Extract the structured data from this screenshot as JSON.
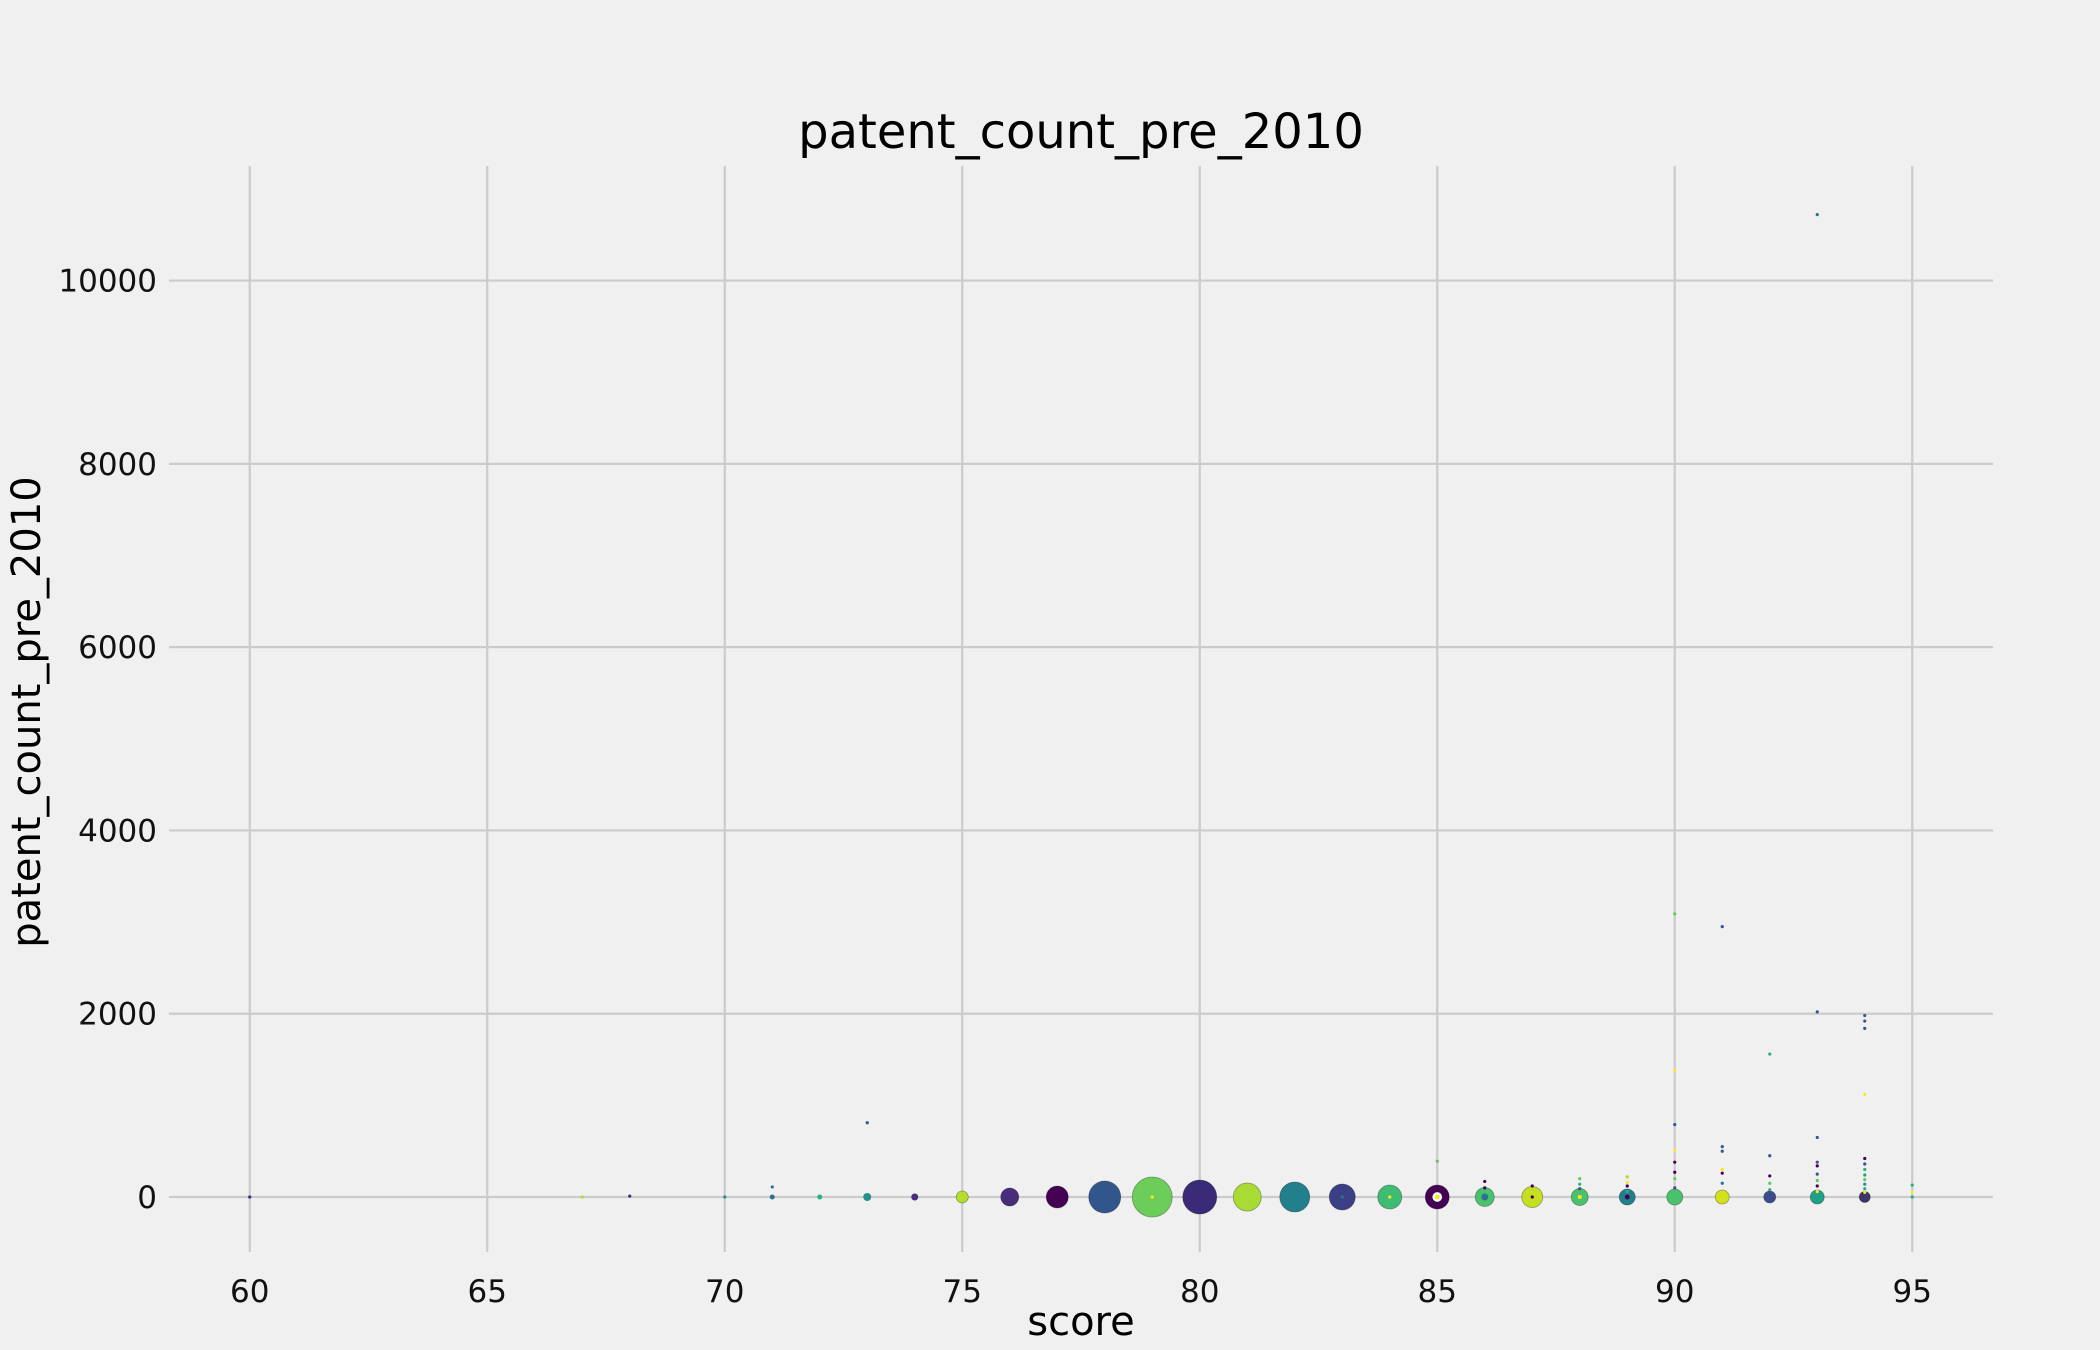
{
  "chart_data": {
    "type": "scatter",
    "title": "patent_count_pre_2010",
    "xlabel": "score",
    "ylabel": "patent_count_pre_2010",
    "xlim": [
      58.3,
      96.7
    ],
    "ylim": [
      -600,
      11250
    ],
    "xticks": [
      60,
      65,
      70,
      75,
      80,
      85,
      90,
      95
    ],
    "yticks": [
      0,
      2000,
      4000,
      6000,
      8000,
      10000
    ],
    "grid": true,
    "colormap": [
      "#440154",
      "#472d7b",
      "#3b528b",
      "#2c728e",
      "#21918c",
      "#28ae80",
      "#5ec962",
      "#addc30",
      "#fde725"
    ],
    "points": [
      {
        "x": 60,
        "y": 0,
        "size": 1,
        "color": "#3b2f7a"
      },
      {
        "x": 67,
        "y": 0,
        "size": 2,
        "color": "#a8db34"
      },
      {
        "x": 68,
        "y": 10,
        "size": 1,
        "color": "#472d7b"
      },
      {
        "x": 70,
        "y": 0,
        "size": 1,
        "color": "#21918c"
      },
      {
        "x": 71,
        "y": 0,
        "size": 5,
        "color": "#2c728e"
      },
      {
        "x": 71,
        "y": 110,
        "size": 1,
        "color": "#2c728e"
      },
      {
        "x": 72,
        "y": 0,
        "size": 5,
        "color": "#28ae80"
      },
      {
        "x": 73,
        "y": 0,
        "size": 8,
        "color": "#21918c"
      },
      {
        "x": 73,
        "y": 810,
        "size": 1,
        "color": "#3b528b"
      },
      {
        "x": 74,
        "y": 0,
        "size": 7,
        "color": "#472d7b"
      },
      {
        "x": 75,
        "y": 0,
        "size": 12,
        "color": "#b5de2b"
      },
      {
        "x": 76,
        "y": 0,
        "size": 18,
        "color": "#472d7b"
      },
      {
        "x": 77,
        "y": 0,
        "size": 22,
        "color": "#440154"
      },
      {
        "x": 78,
        "y": 0,
        "size": 32,
        "color": "#31568c"
      },
      {
        "x": 79,
        "y": 0,
        "size": 40,
        "color": "#6ccd5a"
      },
      {
        "x": 79,
        "y": 0,
        "size": 2,
        "color": "#fde725"
      },
      {
        "x": 80,
        "y": 0,
        "size": 34,
        "color": "#3b2a77"
      },
      {
        "x": 81,
        "y": 0,
        "size": 28,
        "color": "#a8db34"
      },
      {
        "x": 82,
        "y": 0,
        "size": 30,
        "color": "#21808c"
      },
      {
        "x": 83,
        "y": 0,
        "size": 26,
        "color": "#3b3f85"
      },
      {
        "x": 83,
        "y": 0,
        "size": 3,
        "color": "#2c728e"
      },
      {
        "x": 84,
        "y": 0,
        "size": 24,
        "color": "#3fbc73"
      },
      {
        "x": 84,
        "y": 0,
        "size": 3,
        "color": "#fde725"
      },
      {
        "x": 85,
        "y": 0,
        "size": 24,
        "color": "#440154"
      },
      {
        "x": 85,
        "y": 0,
        "size": 10,
        "color": "#ffffff"
      },
      {
        "x": 85,
        "y": 0,
        "size": 5,
        "color": "#fde725"
      },
      {
        "x": 85,
        "y": 390,
        "size": 1,
        "color": "#5ec962"
      },
      {
        "x": 86,
        "y": 0,
        "size": 19,
        "color": "#4ac16d"
      },
      {
        "x": 86,
        "y": 0,
        "size": 7,
        "color": "#2c728e"
      },
      {
        "x": 86,
        "y": 100,
        "size": 2,
        "color": "#440154"
      },
      {
        "x": 86,
        "y": 170,
        "size": 2,
        "color": "#440154"
      },
      {
        "x": 87,
        "y": 0,
        "size": 21,
        "color": "#c5e021"
      },
      {
        "x": 87,
        "y": 0,
        "size": 3,
        "color": "#440154"
      },
      {
        "x": 87,
        "y": 120,
        "size": 1,
        "color": "#440154"
      },
      {
        "x": 88,
        "y": 0,
        "size": 17,
        "color": "#4ac16d"
      },
      {
        "x": 88,
        "y": 0,
        "size": 4,
        "color": "#fde725"
      },
      {
        "x": 88,
        "y": 90,
        "size": 2,
        "color": "#31568c"
      },
      {
        "x": 88,
        "y": 140,
        "size": 2,
        "color": "#28ae80"
      },
      {
        "x": 88,
        "y": 200,
        "size": 2,
        "color": "#5ec962"
      },
      {
        "x": 89,
        "y": 0,
        "size": 16,
        "color": "#21808c"
      },
      {
        "x": 89,
        "y": 0,
        "size": 5,
        "color": "#440154"
      },
      {
        "x": 89,
        "y": 60,
        "size": 2,
        "color": "#28ae80"
      },
      {
        "x": 89,
        "y": 120,
        "size": 2,
        "color": "#440154"
      },
      {
        "x": 89,
        "y": 160,
        "size": 2,
        "color": "#fde725"
      },
      {
        "x": 89,
        "y": 220,
        "size": 2,
        "color": "#addc30"
      },
      {
        "x": 90,
        "y": 0,
        "size": 16,
        "color": "#4ac16d"
      },
      {
        "x": 90,
        "y": 100,
        "size": 2,
        "color": "#3b528b"
      },
      {
        "x": 90,
        "y": 200,
        "size": 2,
        "color": "#5ec962"
      },
      {
        "x": 90,
        "y": 270,
        "size": 2,
        "color": "#440154"
      },
      {
        "x": 90,
        "y": 380,
        "size": 2,
        "color": "#440154"
      },
      {
        "x": 90,
        "y": 510,
        "size": 2,
        "color": "#fde725"
      },
      {
        "x": 90,
        "y": 790,
        "size": 2,
        "color": "#3b528b"
      },
      {
        "x": 90,
        "y": 1380,
        "size": 1,
        "color": "#fde725"
      },
      {
        "x": 90,
        "y": 3090,
        "size": 2,
        "color": "#5ec962"
      },
      {
        "x": 91,
        "y": 0,
        "size": 14,
        "color": "#d1e21b"
      },
      {
        "x": 91,
        "y": 150,
        "size": 2,
        "color": "#2c728e"
      },
      {
        "x": 91,
        "y": 260,
        "size": 2,
        "color": "#440154"
      },
      {
        "x": 91,
        "y": 300,
        "size": 2,
        "color": "#fde725"
      },
      {
        "x": 91,
        "y": 500,
        "size": 2,
        "color": "#3b528b"
      },
      {
        "x": 91,
        "y": 550,
        "size": 1,
        "color": "#3b528b"
      },
      {
        "x": 91,
        "y": 2950,
        "size": 2,
        "color": "#3b528b"
      },
      {
        "x": 92,
        "y": 0,
        "size": 12,
        "color": "#3b4b8b"
      },
      {
        "x": 92,
        "y": 80,
        "size": 2,
        "color": "#28ae80"
      },
      {
        "x": 92,
        "y": 150,
        "size": 2,
        "color": "#5ec962"
      },
      {
        "x": 92,
        "y": 230,
        "size": 2,
        "color": "#440154"
      },
      {
        "x": 92,
        "y": 450,
        "size": 2,
        "color": "#3b528b"
      },
      {
        "x": 92,
        "y": 1560,
        "size": 2,
        "color": "#28ae80"
      },
      {
        "x": 93,
        "y": 0,
        "size": 14,
        "color": "#1fa187"
      },
      {
        "x": 93,
        "y": 60,
        "size": 3,
        "color": "#fde725"
      },
      {
        "x": 93,
        "y": 120,
        "size": 2,
        "color": "#440154"
      },
      {
        "x": 93,
        "y": 180,
        "size": 2,
        "color": "#5ec962"
      },
      {
        "x": 93,
        "y": 250,
        "size": 2,
        "color": "#3b528b"
      },
      {
        "x": 93,
        "y": 340,
        "size": 2,
        "color": "#440154"
      },
      {
        "x": 93,
        "y": 380,
        "size": 2,
        "color": "#3b528b"
      },
      {
        "x": 93,
        "y": 650,
        "size": 2,
        "color": "#3b528b"
      },
      {
        "x": 93,
        "y": 2020,
        "size": 2,
        "color": "#3b528b"
      },
      {
        "x": 93,
        "y": 10720,
        "size": 2,
        "color": "#2c728e"
      },
      {
        "x": 94,
        "y": 0,
        "size": 11,
        "color": "#3e3568"
      },
      {
        "x": 94,
        "y": 50,
        "size": 3,
        "color": "#fde725"
      },
      {
        "x": 94,
        "y": 90,
        "size": 2,
        "color": "#28ae80"
      },
      {
        "x": 94,
        "y": 140,
        "size": 2,
        "color": "#21918c"
      },
      {
        "x": 94,
        "y": 190,
        "size": 2,
        "color": "#5ec962"
      },
      {
        "x": 94,
        "y": 240,
        "size": 2,
        "color": "#1fa187"
      },
      {
        "x": 94,
        "y": 300,
        "size": 2,
        "color": "#28ae80"
      },
      {
        "x": 94,
        "y": 360,
        "size": 2,
        "color": "#3b528b"
      },
      {
        "x": 94,
        "y": 420,
        "size": 2,
        "color": "#440154"
      },
      {
        "x": 94,
        "y": 1120,
        "size": 2,
        "color": "#fde725"
      },
      {
        "x": 94,
        "y": 1840,
        "size": 2,
        "color": "#3b528b"
      },
      {
        "x": 94,
        "y": 1920,
        "size": 2,
        "color": "#3b528b"
      },
      {
        "x": 94,
        "y": 1980,
        "size": 2,
        "color": "#3b528b"
      },
      {
        "x": 95,
        "y": 0,
        "size": 3,
        "color": "#28ae80"
      },
      {
        "x": 95,
        "y": 50,
        "size": 2,
        "color": "#fde725"
      },
      {
        "x": 95,
        "y": 130,
        "size": 2,
        "color": "#28ae80"
      }
    ]
  }
}
